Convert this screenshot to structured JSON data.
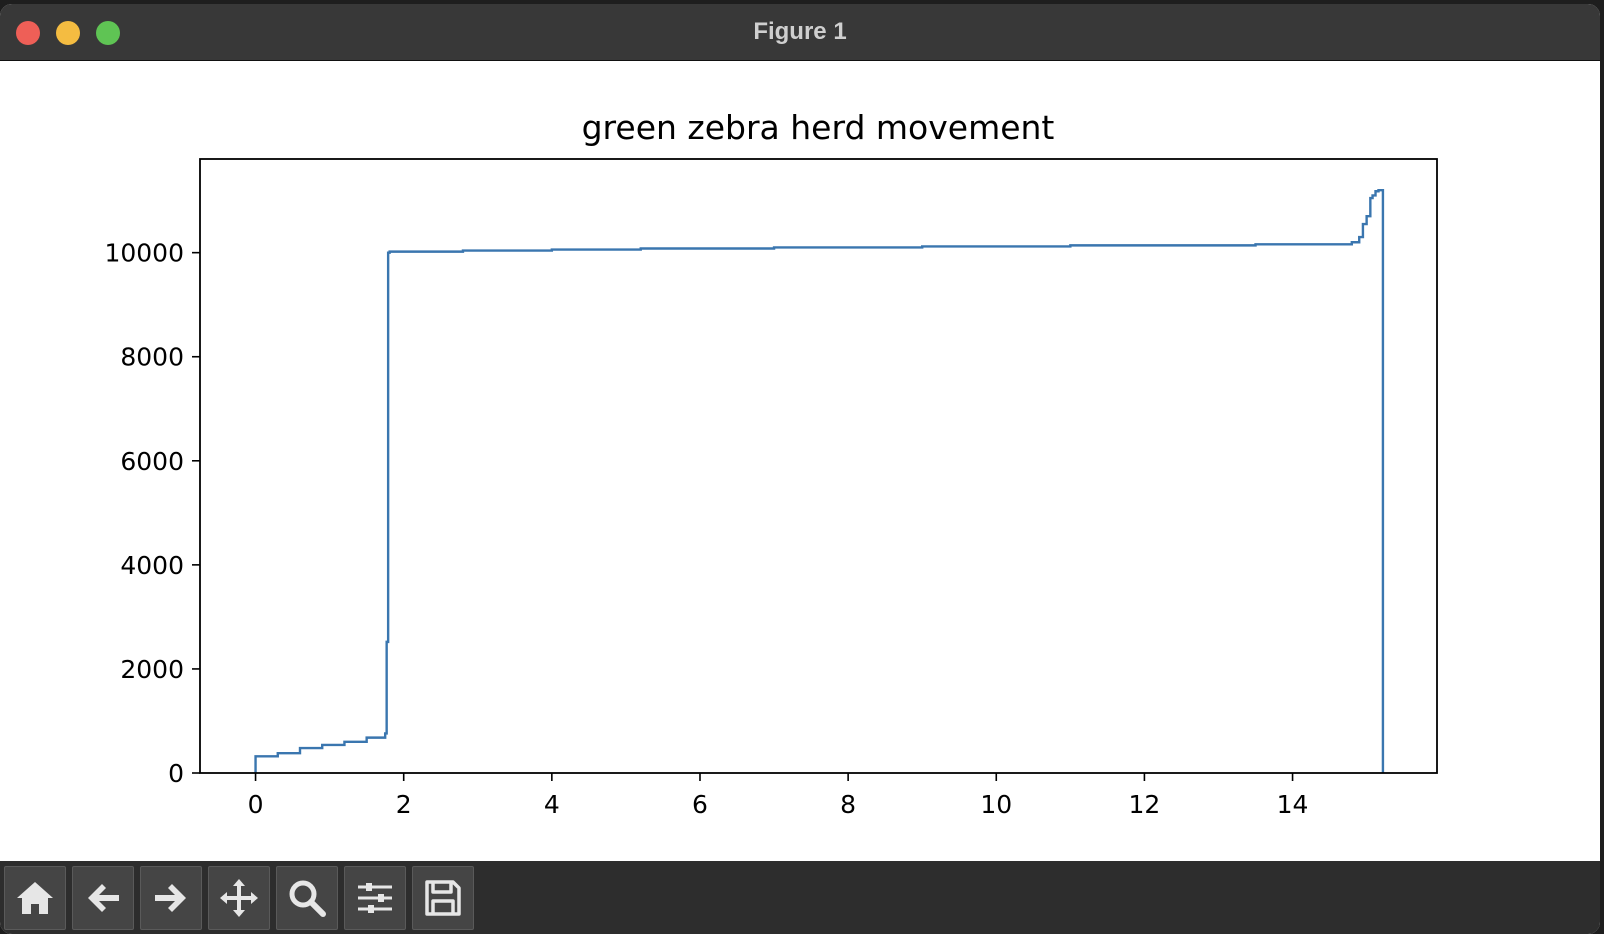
{
  "window": {
    "title": "Figure 1"
  },
  "toolbar": {
    "buttons": [
      {
        "icon": "home-icon"
      },
      {
        "icon": "back-arrow-icon"
      },
      {
        "icon": "forward-arrow-icon"
      },
      {
        "icon": "pan-move-icon"
      },
      {
        "icon": "zoom-magnifier-icon"
      },
      {
        "icon": "subplots-sliders-icon"
      },
      {
        "icon": "save-floppy-icon"
      }
    ]
  },
  "colors": {
    "line": "#3a76af",
    "titlebar": "#383838",
    "toolbar": "#2d2d2d"
  },
  "chart_data": {
    "type": "line",
    "drawstyle": "steps",
    "title": "green zebra herd movement",
    "xlabel": "",
    "ylabel": "",
    "xlim": [
      -0.75,
      15.95
    ],
    "ylim": [
      0,
      11800
    ],
    "xticks": [
      0,
      2,
      4,
      6,
      8,
      10,
      12,
      14
    ],
    "yticks": [
      0,
      2000,
      4000,
      6000,
      8000,
      10000
    ],
    "grid": false,
    "series": [
      {
        "x": [
          0,
          0,
          0.3,
          0.6,
          0.9,
          1.2,
          1.5,
          1.75,
          1.77,
          1.79,
          1.81,
          2.8,
          4.0,
          5.2,
          7.0,
          9.0,
          11.0,
          13.5,
          14.8,
          14.9,
          14.95,
          15.0,
          15.05,
          15.08,
          15.12,
          15.16,
          15.22,
          15.22
        ],
        "y": [
          0,
          320,
          380,
          480,
          540,
          600,
          680,
          760,
          2520,
          10000,
          10020,
          10040,
          10060,
          10080,
          10100,
          10120,
          10140,
          10160,
          10200,
          10300,
          10550,
          10700,
          11050,
          11100,
          11180,
          11200,
          11200,
          0
        ]
      }
    ]
  }
}
